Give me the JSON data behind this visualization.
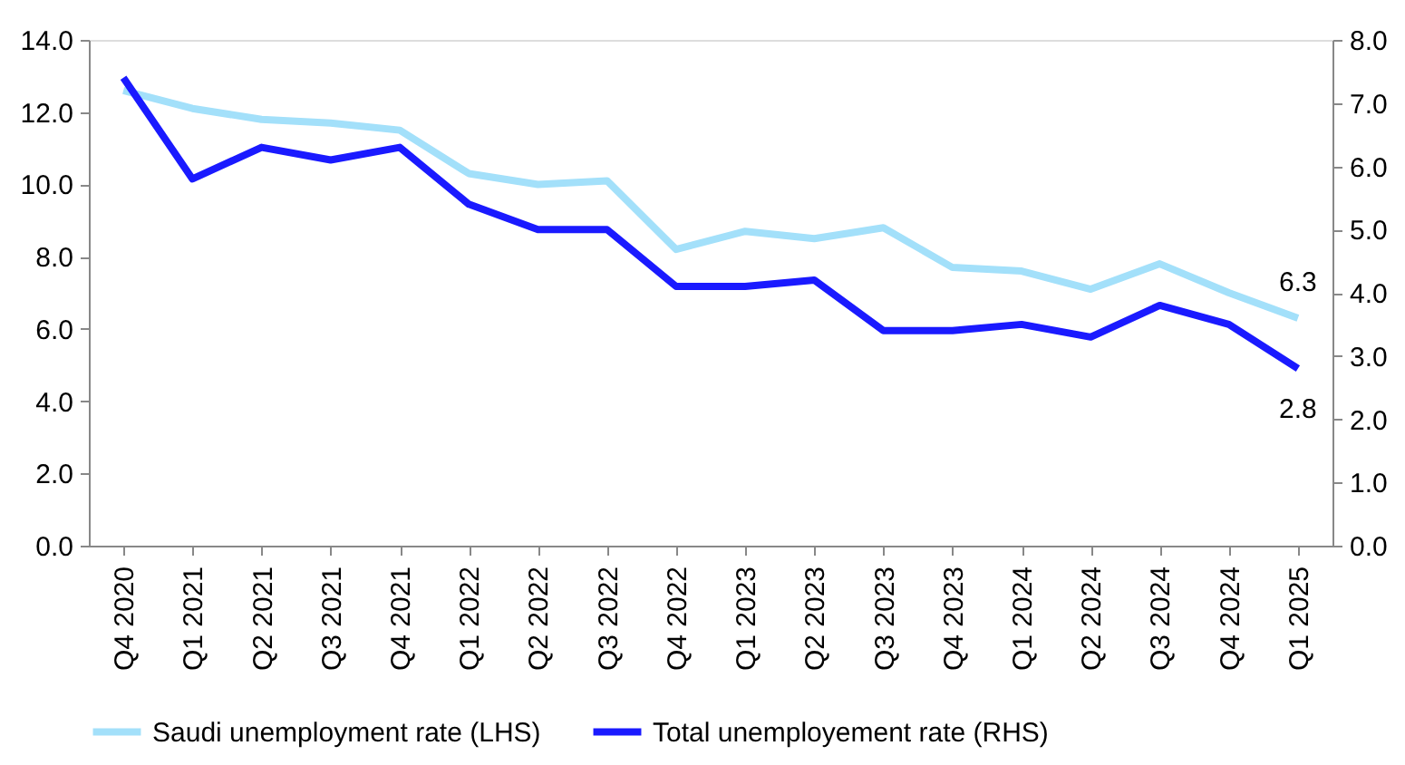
{
  "chart_data": {
    "type": "line",
    "categories": [
      "Q4 2020",
      "Q1 2021",
      "Q2 2021",
      "Q3 2021",
      "Q4 2021",
      "Q1 2022",
      "Q2 2022",
      "Q3 2022",
      "Q4 2022",
      "Q1 2023",
      "Q2 2023",
      "Q3 2023",
      "Q4 2023",
      "Q1 2024",
      "Q2 2024",
      "Q3 2024",
      "Q4 2024",
      "Q1 2025"
    ],
    "series": [
      {
        "name": "Saudi unemployment rate (LHS)",
        "color": "#a3e0fa",
        "values": [
          12.6,
          12.1,
          11.8,
          11.7,
          11.5,
          10.3,
          10.0,
          10.1,
          8.2,
          8.7,
          8.5,
          8.8,
          7.7,
          7.6,
          7.1,
          7.8,
          7.0,
          6.3
        ],
        "value_labels": [
          null,
          null,
          null,
          null,
          null,
          null,
          null,
          null,
          null,
          null,
          null,
          null,
          null,
          null,
          null,
          null,
          null,
          "6.3"
        ]
      },
      {
        "name": "Total unemployement rate (RHS)",
        "color": "#1a1aff",
        "axis": "y2",
        "values": [
          7.4,
          5.8,
          6.3,
          6.1,
          6.3,
          5.4,
          5.0,
          5.0,
          4.1,
          4.1,
          4.2,
          3.4,
          3.4,
          3.5,
          3.3,
          3.8,
          3.5,
          2.8
        ],
        "value_labels": [
          null,
          null,
          null,
          null,
          null,
          null,
          null,
          null,
          null,
          null,
          null,
          null,
          null,
          null,
          null,
          null,
          null,
          "2.8"
        ]
      }
    ],
    "ylim": [
      0,
      14
    ],
    "yticks": [
      {
        "value": 0,
        "label": "0.0"
      },
      {
        "value": 2,
        "label": "2.0"
      },
      {
        "value": 4,
        "label": "4.0"
      },
      {
        "value": 6,
        "label": "6.0"
      },
      {
        "value": 8,
        "label": "8.0"
      },
      {
        "value": 10,
        "label": "10.0"
      },
      {
        "value": 12,
        "label": "12.0"
      },
      {
        "value": 14,
        "label": "14.0"
      }
    ],
    "y2lim": [
      0,
      8
    ],
    "y2ticks": [
      {
        "value": 0,
        "label": "0.0"
      },
      {
        "value": 1,
        "label": "1.0"
      },
      {
        "value": 2,
        "label": "2.0"
      },
      {
        "value": 3,
        "label": "3.0"
      },
      {
        "value": 4,
        "label": "4.0"
      },
      {
        "value": 5,
        "label": "5.0"
      },
      {
        "value": 6,
        "label": "6.0"
      },
      {
        "value": 7,
        "label": "7.0"
      },
      {
        "value": 8,
        "label": "8.0"
      }
    ],
    "grid": false,
    "legend": "bottom",
    "line_style": "solid"
  }
}
